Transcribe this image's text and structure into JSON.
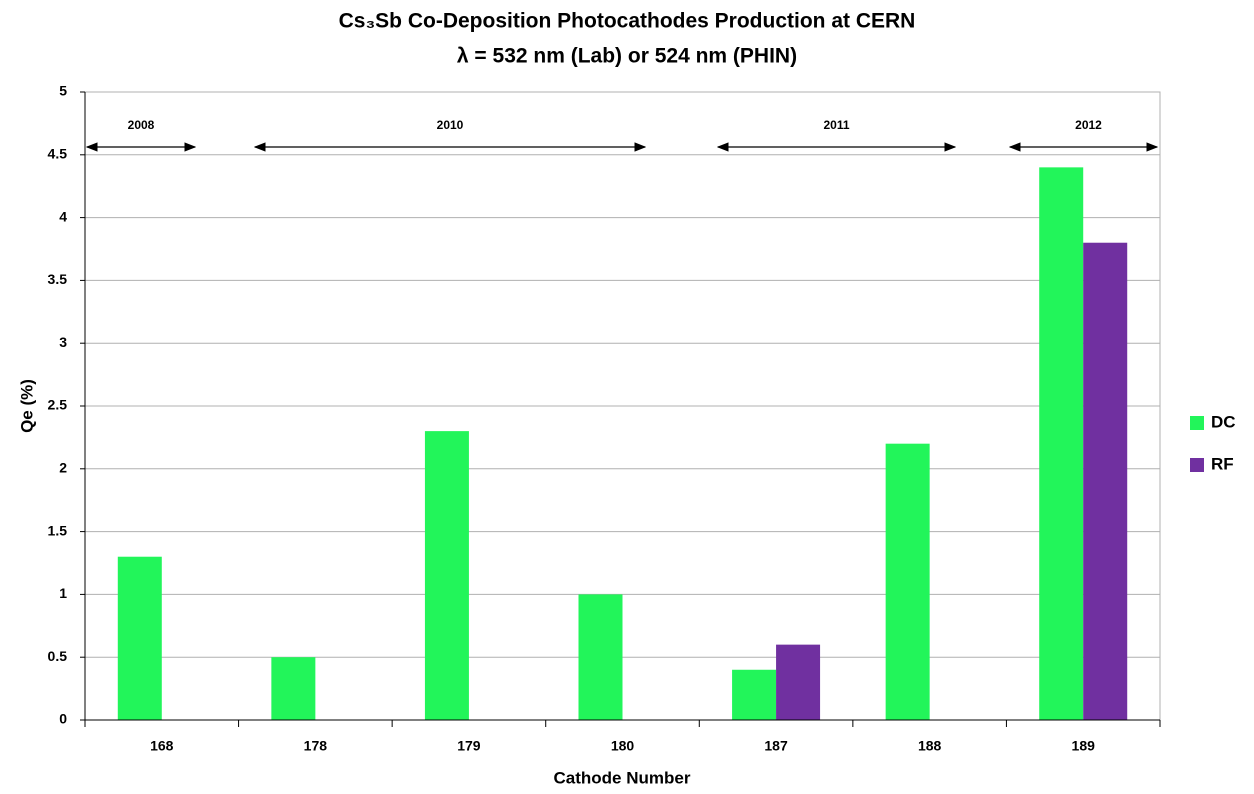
{
  "chart_data": {
    "type": "bar",
    "title": "Cs₃Sb Co-Deposition  Photocathodes  Production at CERN",
    "subtitle": "λ = 532 nm (Lab) or 524 nm (PHIN)",
    "x_label": "Cathode Number",
    "y_label": "Qe (%)",
    "categories": [
      "168",
      "178",
      "179",
      "180",
      "187",
      "188",
      "189"
    ],
    "series": [
      {
        "name": "DC",
        "color": "#22f55a",
        "values": [
          1.3,
          0.5,
          2.3,
          1.0,
          0.4,
          2.2,
          4.4
        ]
      },
      {
        "name": "RF",
        "color": "#7030a0",
        "values": [
          null,
          null,
          null,
          null,
          0.6,
          null,
          3.8
        ]
      }
    ],
    "ylim": [
      0,
      5
    ],
    "yticks": [
      0,
      0.5,
      1,
      1.5,
      2,
      2.5,
      3,
      3.5,
      4,
      4.5,
      5
    ],
    "grid": true,
    "legend": "right",
    "annotations": [
      "2008",
      "2010",
      "2011",
      "2012"
    ]
  }
}
